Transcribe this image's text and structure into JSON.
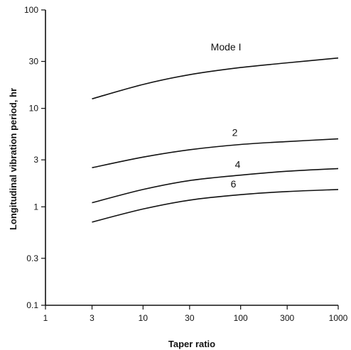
{
  "chart_data": {
    "type": "line",
    "xlabel": "Taper ratio",
    "ylabel": "Longitudinal vibration period,  hr",
    "x_scale": "log",
    "y_scale": "log",
    "xlim": [
      1,
      1000
    ],
    "ylim": [
      0.1,
      100
    ],
    "x_ticks": [
      1,
      3,
      10,
      30,
      100,
      300,
      1000
    ],
    "x_tick_labels": [
      "1",
      "3",
      "10",
      "30",
      "100",
      "300",
      "1000"
    ],
    "y_ticks": [
      0.1,
      0.3,
      1,
      3,
      10,
      30,
      100
    ],
    "y_tick_labels": [
      "0.1",
      "0.3",
      "1",
      "3",
      "10",
      "30",
      "100"
    ],
    "grid": false,
    "series": [
      {
        "name": "Mode I",
        "x": [
          3,
          10,
          30,
          100,
          300,
          1000
        ],
        "values": [
          12.5,
          17.5,
          22,
          26,
          29,
          32.5
        ]
      },
      {
        "name": "2",
        "x": [
          3,
          10,
          30,
          100,
          300,
          1000
        ],
        "values": [
          2.5,
          3.2,
          3.8,
          4.3,
          4.6,
          4.9
        ]
      },
      {
        "name": "4",
        "x": [
          3,
          10,
          30,
          100,
          300,
          1000
        ],
        "values": [
          1.1,
          1.5,
          1.85,
          2.1,
          2.3,
          2.45
        ]
      },
      {
        "name": "6",
        "x": [
          3,
          10,
          30,
          100,
          300,
          1000
        ],
        "values": [
          0.7,
          0.95,
          1.17,
          1.33,
          1.43,
          1.5
        ]
      }
    ]
  }
}
